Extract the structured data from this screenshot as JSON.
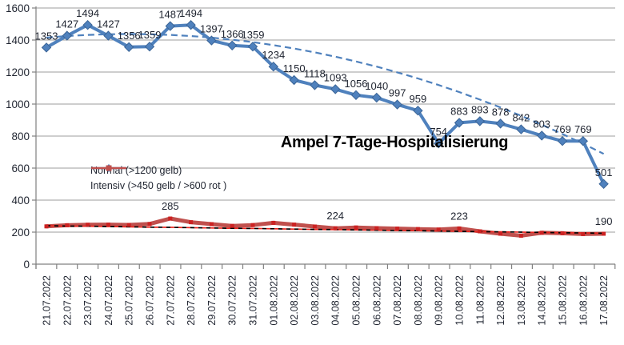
{
  "chart_data": {
    "type": "line",
    "title": "Ampel 7-Tage-Hospitalisierung",
    "categories": [
      "21.07.2022",
      "22.07.2022",
      "23.07.2022",
      "24.07.2022",
      "25.07.2022",
      "26.07.2022",
      "27.07.2022",
      "28.07.2022",
      "29.07.2022",
      "30.07.2022",
      "31.07.2022",
      "01.08.2022",
      "02.08.2022",
      "03.08.2022",
      "04.08.2022",
      "05.08.2022",
      "06.08.2022",
      "07.08.2022",
      "08.08.2022",
      "09.08.2022",
      "10.08.2022",
      "11.08.2022",
      "12.08.2022",
      "13.08.2022",
      "14.08.2022",
      "15.08.2022",
      "16.08.2022",
      "17.08.2022"
    ],
    "y_axis": {
      "min": 0,
      "max": 1600,
      "step": 200,
      "tick_labels": [
        "0",
        "200",
        "400",
        "600",
        "800",
        "1000",
        "1200",
        "1400",
        "1600"
      ]
    },
    "grid": true,
    "legend_position": "inside-left",
    "series": [
      {
        "name": "Normal (>1200 gelb)",
        "marker": "diamond",
        "color": "#4F81BD",
        "marker_edge": "#3A6496",
        "data_labels": "all",
        "values": [
          1353,
          1427,
          1494,
          1427,
          1356,
          1359,
          1487,
          1494,
          1397,
          1366,
          1359,
          1234,
          1150,
          1118,
          1093,
          1056,
          1040,
          997,
          959,
          754,
          883,
          893,
          878,
          842,
          803,
          769,
          769,
          501
        ]
      },
      {
        "name": "Intensiv (>450 gelb / >600 rot )",
        "marker": "square",
        "color": "#C0504D",
        "marker_color": "#CC2222",
        "data_labels": "some",
        "labeled_indices": [
          6,
          14,
          20,
          27
        ],
        "values": [
          236,
          243,
          246,
          247,
          245,
          251,
          285,
          262,
          250,
          239,
          244,
          258,
          247,
          235,
          224,
          229,
          225,
          222,
          219,
          216,
          223,
          205,
          190,
          178,
          196,
          193,
          188,
          190
        ]
      }
    ],
    "trendlines": [
      {
        "for": "Normal (>1200 gelb)",
        "style": "dashed",
        "color": "#4F81BD",
        "values": [
          1415,
          1425,
          1432,
          1436,
          1438,
          1436,
          1432,
          1425,
          1415,
          1402,
          1387,
          1368,
          1347,
          1323,
          1296,
          1266,
          1234,
          1198,
          1160,
          1119,
          1075,
          1028,
          979,
          927,
          871,
          813,
          753,
          689
        ]
      },
      {
        "for": "Intensiv (>450 gelb / >600 rot )",
        "style": "dashed",
        "colors": [
          "#000000",
          "#E8251F"
        ],
        "values": [
          240,
          238,
          237,
          235,
          233,
          231,
          230,
          228,
          226,
          224,
          223,
          221,
          219,
          217,
          216,
          214,
          212,
          210,
          209,
          207,
          205,
          203,
          202,
          200,
          198,
          196,
          195,
          193
        ]
      }
    ],
    "colors": {
      "grid": "#9C9C9C",
      "axis": "#808080",
      "text": "#1F2430",
      "title": "#000000",
      "background": "#FFFFFF"
    }
  }
}
